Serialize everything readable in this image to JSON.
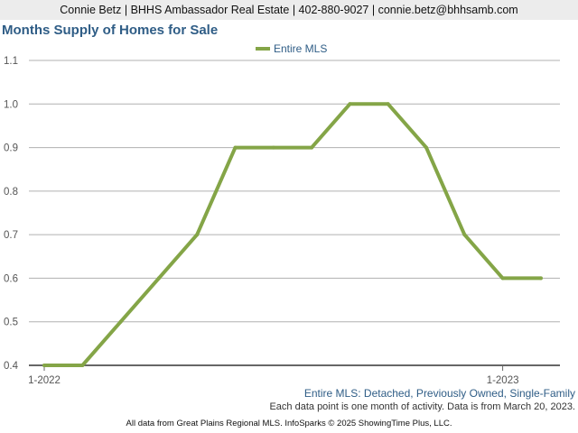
{
  "header": {
    "contact": "Connie Betz | BHHS Ambassador Real Estate | 402-880-9027 | connie.betz@bhhsamb.com"
  },
  "footer": {
    "subset": "Entire MLS: Detached, Previously Owned, Single-Family",
    "activity_note": "Each data point is one month of activity. Data is from March 20, 2023.",
    "credit": "All data from Great Plains Regional MLS. InfoSparks © 2025 ShowingTime Plus, LLC."
  },
  "colors": {
    "series": "#84a547",
    "title": "#2f5d86",
    "grid": "#b0b0b0",
    "axis": "#555555"
  },
  "chart_data": {
    "type": "line",
    "title": "Months Supply of Homes for Sale",
    "xlabel": "",
    "ylabel": "",
    "x": [
      "2022-01",
      "2022-02",
      "2022-03",
      "2022-04",
      "2022-05",
      "2022-06",
      "2022-07",
      "2022-08",
      "2022-09",
      "2022-10",
      "2022-11",
      "2022-12",
      "2023-01",
      "2023-02"
    ],
    "x_tick_labels": [
      {
        "x": "2022-01",
        "label": "1-2022"
      },
      {
        "x": "2023-01",
        "label": "1-2023"
      }
    ],
    "series": [
      {
        "name": "Entire MLS",
        "values": [
          0.4,
          0.4,
          0.5,
          0.6,
          0.7,
          0.9,
          0.9,
          0.9,
          1.0,
          1.0,
          0.9,
          0.7,
          0.6,
          0.6
        ]
      }
    ],
    "ylim": [
      0.4,
      1.1
    ],
    "yticks": [
      0.4,
      0.5,
      0.6,
      0.7,
      0.8,
      0.9,
      1.0,
      1.1
    ],
    "grid": true,
    "legend_position": "top-center"
  }
}
